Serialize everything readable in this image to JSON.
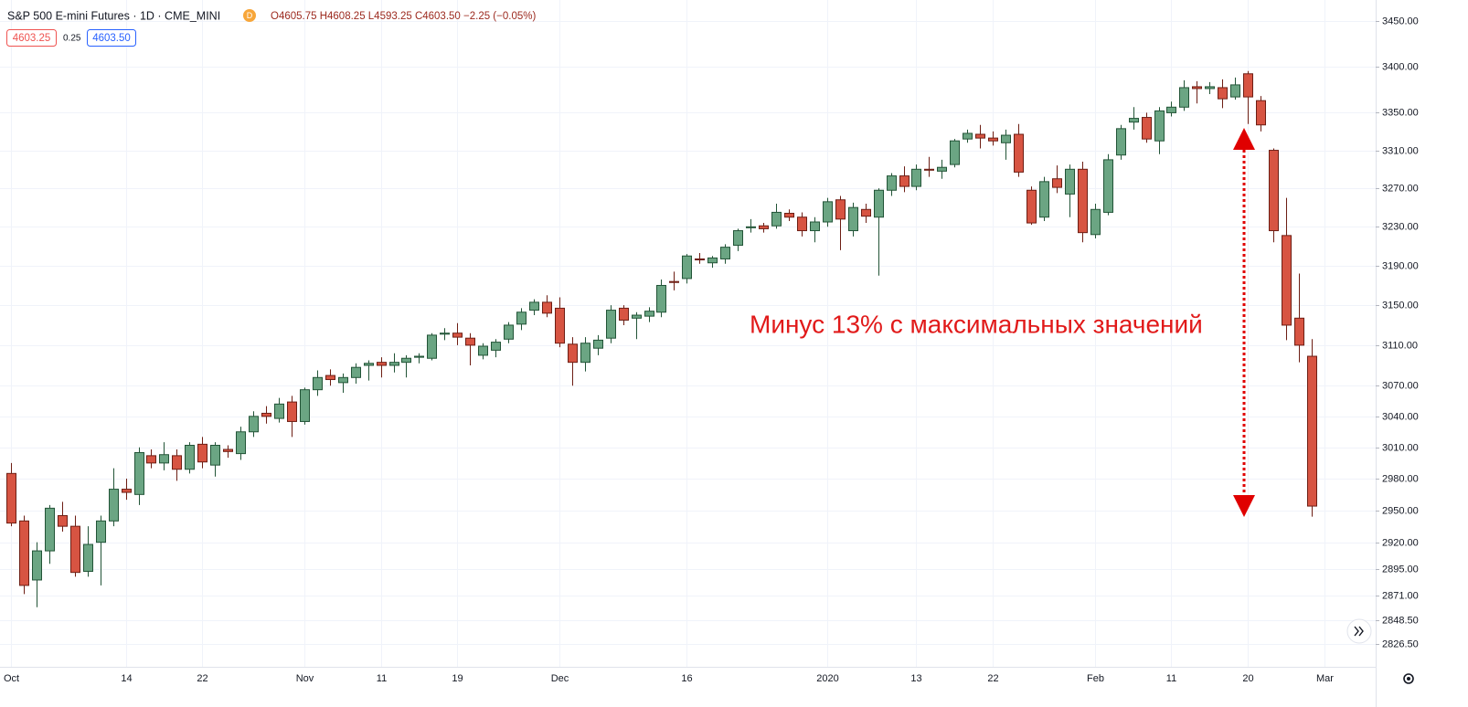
{
  "header": {
    "symbol": "S&P 500 E-mini Futures · 1D · CME_MINI",
    "badge": "D",
    "quote": "O4605.75 H4608.25 L4593.25 C4603.50 −2.25 (−0.05%)",
    "bid": "4603.25",
    "spread": "0.25",
    "ask": "4603.50"
  },
  "chart_data": {
    "type": "candlestick",
    "annotation": "Минус 13% с максимальных значений",
    "up_color": "#6ba583",
    "up_border": "#225437",
    "down_color": "#d75442",
    "down_border": "#6d1e14",
    "log": true,
    "grid": true,
    "ylim": [
      2806,
      3473
    ],
    "yticks": [
      {
        "value": 2826.5,
        "label": "2826.50"
      },
      {
        "value": 2848.5,
        "label": "2848.50"
      },
      {
        "value": 2871,
        "label": "2871.00"
      },
      {
        "value": 2895,
        "label": "2895.00"
      },
      {
        "value": 2920,
        "label": "2920.00"
      },
      {
        "value": 2950,
        "label": "2950.00"
      },
      {
        "value": 2980,
        "label": "2980.00"
      },
      {
        "value": 3010,
        "label": "3010.00"
      },
      {
        "value": 3040,
        "label": "3040.00"
      },
      {
        "value": 3070,
        "label": "3070.00"
      },
      {
        "value": 3110,
        "label": "3110.00"
      },
      {
        "value": 3150,
        "label": "3150.00"
      },
      {
        "value": 3190,
        "label": "3190.00"
      },
      {
        "value": 3230,
        "label": "3230.00"
      },
      {
        "value": 3270,
        "label": "3270.00"
      },
      {
        "value": 3310,
        "label": "3310.00"
      },
      {
        "value": 3350,
        "label": "3350.00"
      },
      {
        "value": 3400,
        "label": "3400.00"
      },
      {
        "value": 3450,
        "label": "3450.00"
      }
    ],
    "categories": [
      "Oct",
      null,
      null,
      null,
      null,
      null,
      null,
      null,
      null,
      "14",
      null,
      null,
      null,
      null,
      null,
      "22",
      null,
      null,
      null,
      null,
      null,
      null,
      null,
      "Nov",
      null,
      null,
      null,
      null,
      null,
      "11",
      null,
      null,
      null,
      null,
      null,
      "19",
      null,
      null,
      null,
      null,
      null,
      null,
      null,
      "Dec",
      null,
      null,
      null,
      null,
      null,
      null,
      null,
      null,
      null,
      "16",
      null,
      null,
      null,
      null,
      null,
      null,
      null,
      null,
      null,
      null,
      "2020",
      null,
      null,
      null,
      null,
      null,
      null,
      "13",
      null,
      null,
      null,
      null,
      null,
      "22",
      null,
      null,
      null,
      null,
      null,
      null,
      null,
      "Feb",
      null,
      null,
      null,
      null,
      null,
      "11",
      null,
      null,
      null,
      null,
      null,
      "20",
      null,
      null,
      null,
      null,
      null,
      "Mar"
    ],
    "ohlc": [
      [
        2985,
        2995,
        2935,
        2938
      ],
      [
        2940,
        2945,
        2872,
        2880
      ],
      [
        2885,
        2920,
        2860,
        2912
      ],
      [
        2912,
        2955,
        2900,
        2952
      ],
      [
        2945,
        2958,
        2930,
        2935
      ],
      [
        2935,
        2945,
        2888,
        2892
      ],
      [
        2893,
        2935,
        2888,
        2918
      ],
      [
        2920,
        2945,
        2880,
        2940
      ],
      [
        2940,
        2990,
        2935,
        2970
      ],
      [
        2970,
        2980,
        2960,
        2967
      ],
      [
        2965,
        3010,
        2955,
        3005
      ],
      [
        3002,
        3008,
        2990,
        2995
      ],
      [
        2995,
        3015,
        2988,
        3003
      ],
      [
        3002,
        3008,
        2978,
        2989
      ],
      [
        2989,
        3015,
        2985,
        3012
      ],
      [
        3013,
        3020,
        2990,
        2996
      ],
      [
        2993,
        3015,
        2982,
        3012
      ],
      [
        3008,
        3012,
        3000,
        3006
      ],
      [
        3004,
        3030,
        2998,
        3025
      ],
      [
        3025,
        3045,
        3020,
        3040
      ],
      [
        3043,
        3050,
        3033,
        3040
      ],
      [
        3038,
        3058,
        3034,
        3052
      ],
      [
        3054,
        3060,
        3020,
        3035
      ],
      [
        3035,
        3068,
        3032,
        3066
      ],
      [
        3066,
        3085,
        3060,
        3078
      ],
      [
        3080,
        3086,
        3070,
        3076
      ],
      [
        3073,
        3082,
        3063,
        3078
      ],
      [
        3078,
        3092,
        3072,
        3088
      ],
      [
        3090,
        3095,
        3075,
        3092
      ],
      [
        3093,
        3098,
        3078,
        3090
      ],
      [
        3090,
        3102,
        3083,
        3093
      ],
      [
        3093,
        3100,
        3078,
        3097
      ],
      [
        3098,
        3102,
        3092,
        3099
      ],
      [
        3097,
        3122,
        3095,
        3120
      ],
      [
        3121,
        3127,
        3115,
        3122
      ],
      [
        3122,
        3132,
        3110,
        3118
      ],
      [
        3117,
        3122,
        3090,
        3110
      ],
      [
        3100,
        3112,
        3096,
        3109
      ],
      [
        3105,
        3116,
        3098,
        3113
      ],
      [
        3116,
        3133,
        3112,
        3130
      ],
      [
        3131,
        3147,
        3125,
        3143
      ],
      [
        3145,
        3156,
        3140,
        3153
      ],
      [
        3153,
        3160,
        3138,
        3142
      ],
      [
        3147,
        3158,
        3108,
        3112
      ],
      [
        3111,
        3118,
        3070,
        3093
      ],
      [
        3093,
        3118,
        3084,
        3112
      ],
      [
        3107,
        3120,
        3100,
        3115
      ],
      [
        3117,
        3150,
        3112,
        3145
      ],
      [
        3147,
        3150,
        3130,
        3135
      ],
      [
        3137,
        3143,
        3116,
        3140
      ],
      [
        3139,
        3148,
        3133,
        3144
      ],
      [
        3143,
        3176,
        3138,
        3170
      ],
      [
        3174,
        3184,
        3165,
        3173
      ],
      [
        3177,
        3202,
        3172,
        3200
      ],
      [
        3197,
        3203,
        3192,
        3196
      ],
      [
        3193,
        3200,
        3188,
        3198
      ],
      [
        3197,
        3212,
        3192,
        3209
      ],
      [
        3211,
        3228,
        3205,
        3226
      ],
      [
        3229,
        3238,
        3224,
        3230
      ],
      [
        3231,
        3234,
        3224,
        3228
      ],
      [
        3231,
        3254,
        3228,
        3245
      ],
      [
        3244,
        3248,
        3236,
        3240
      ],
      [
        3240,
        3245,
        3220,
        3226
      ],
      [
        3226,
        3240,
        3214,
        3235
      ],
      [
        3235,
        3260,
        3230,
        3256
      ],
      [
        3258,
        3262,
        3206,
        3238
      ],
      [
        3226,
        3255,
        3220,
        3250
      ],
      [
        3248,
        3254,
        3234,
        3241
      ],
      [
        3240,
        3270,
        3180,
        3268
      ],
      [
        3268,
        3286,
        3262,
        3283
      ],
      [
        3283,
        3293,
        3266,
        3272
      ],
      [
        3272,
        3295,
        3268,
        3290
      ],
      [
        3290,
        3303,
        3282,
        3289
      ],
      [
        3288,
        3300,
        3280,
        3292
      ],
      [
        3295,
        3322,
        3292,
        3320
      ],
      [
        3322,
        3332,
        3318,
        3328
      ],
      [
        3327,
        3337,
        3312,
        3323
      ],
      [
        3323,
        3330,
        3315,
        3320
      ],
      [
        3318,
        3332,
        3300,
        3326
      ],
      [
        3327,
        3338,
        3282,
        3287
      ],
      [
        3268,
        3272,
        3232,
        3234
      ],
      [
        3240,
        3282,
        3236,
        3277
      ],
      [
        3280,
        3294,
        3265,
        3271
      ],
      [
        3264,
        3295,
        3240,
        3290
      ],
      [
        3290,
        3298,
        3214,
        3224
      ],
      [
        3222,
        3254,
        3218,
        3248
      ],
      [
        3245,
        3306,
        3242,
        3300
      ],
      [
        3305,
        3337,
        3300,
        3333
      ],
      [
        3340,
        3356,
        3332,
        3344
      ],
      [
        3345,
        3350,
        3318,
        3322
      ],
      [
        3320,
        3356,
        3306,
        3352
      ],
      [
        3350,
        3362,
        3346,
        3356
      ],
      [
        3356,
        3385,
        3352,
        3377
      ],
      [
        3378,
        3384,
        3360,
        3376
      ],
      [
        3376,
        3383,
        3370,
        3378
      ],
      [
        3377,
        3386,
        3355,
        3365
      ],
      [
        3367,
        3388,
        3364,
        3380
      ],
      [
        3392,
        3395,
        3338,
        3367
      ],
      [
        3363,
        3368,
        3330,
        3337
      ],
      [
        3310,
        3312,
        3214,
        3226
      ],
      [
        3221,
        3260,
        3115,
        3130
      ],
      [
        3137,
        3182,
        3093,
        3110
      ],
      [
        3099,
        3116,
        2944,
        2954
      ],
      null
    ]
  }
}
